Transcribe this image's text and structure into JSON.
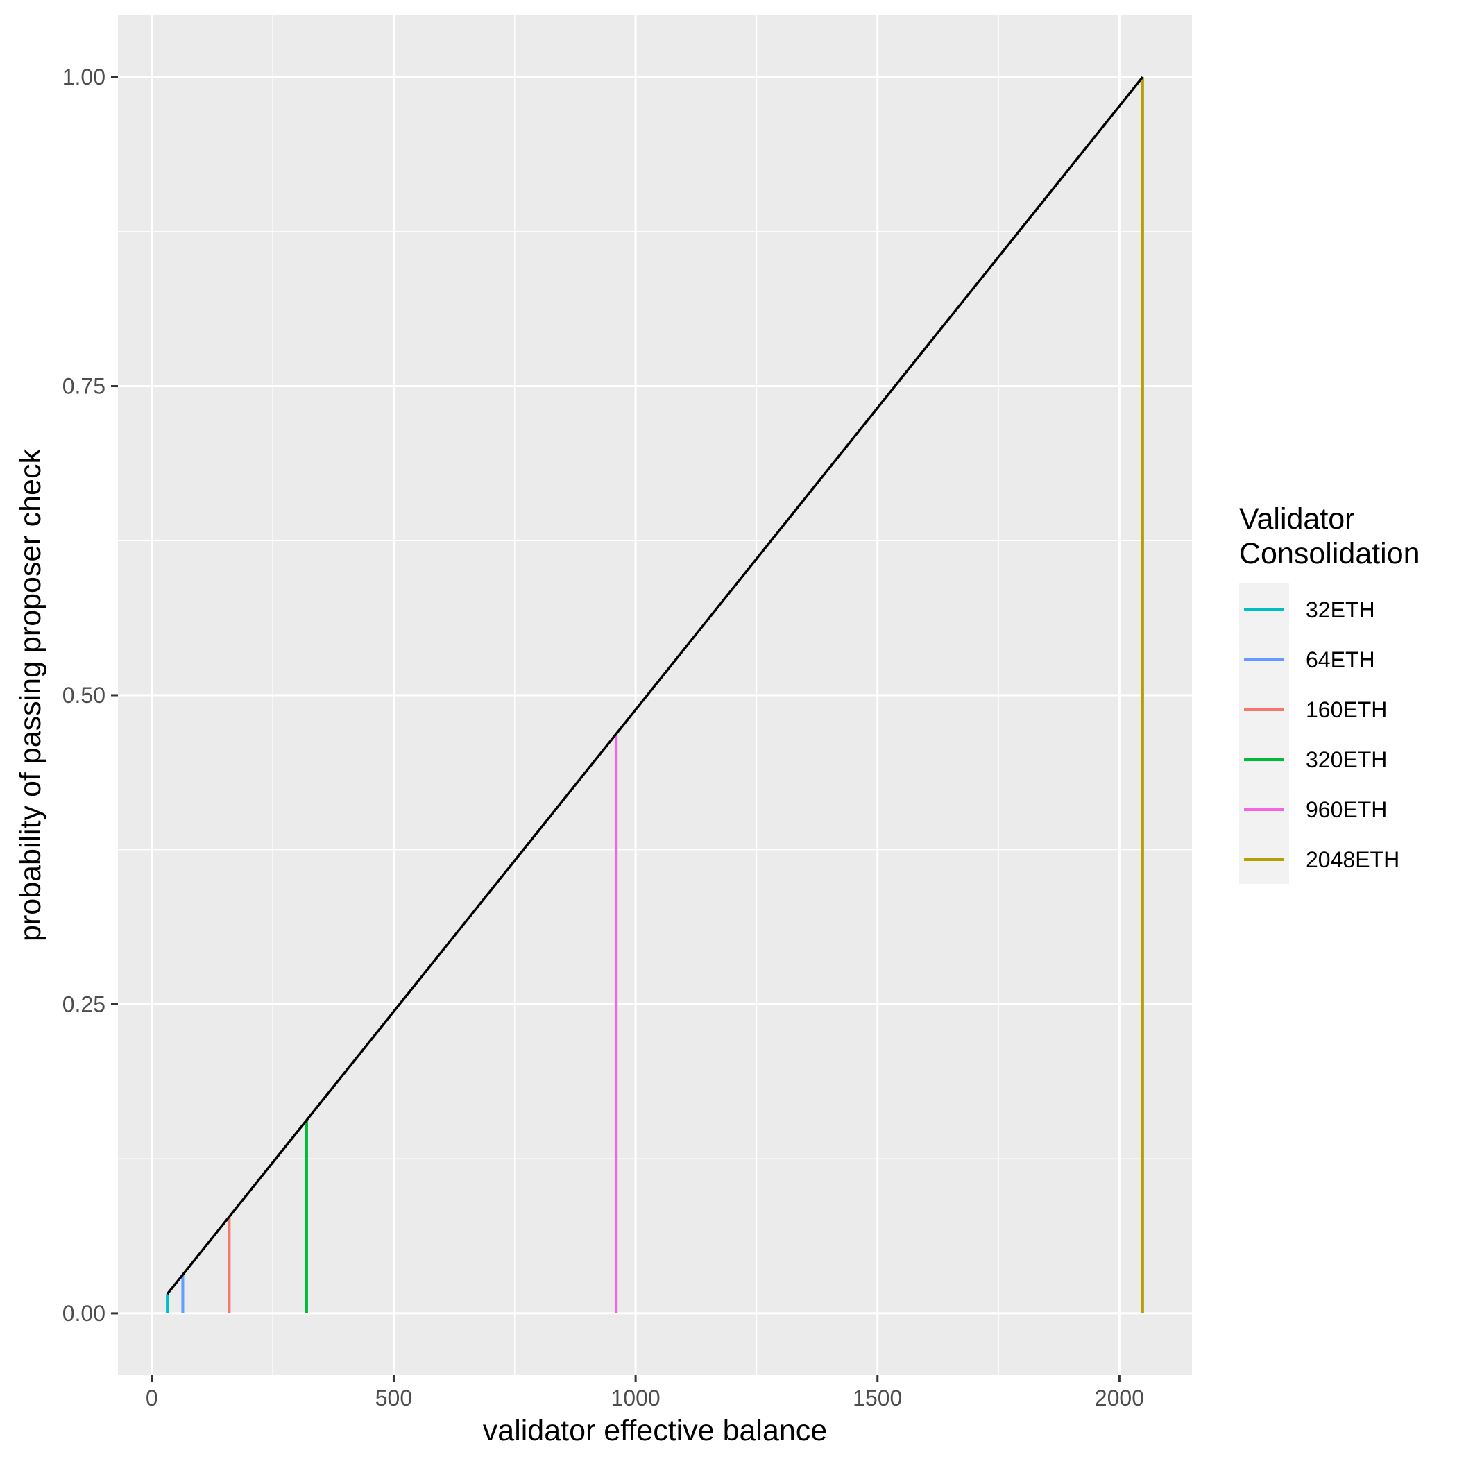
{
  "chart_data": {
    "type": "line",
    "title": "",
    "xlabel": "validator effective balance",
    "ylabel": "probability of passing proposer check",
    "xlim": [
      -70,
      2150
    ],
    "ylim": [
      -0.05,
      1.05
    ],
    "x_ticks": [
      0,
      500,
      1000,
      1500,
      2000
    ],
    "x_tick_labels": [
      "0",
      "500",
      "1000",
      "1500",
      "2000"
    ],
    "y_ticks": [
      0,
      0.25,
      0.5,
      0.75,
      1.0
    ],
    "y_tick_labels": [
      "0.00",
      "0.25",
      "0.50",
      "0.75",
      "1.00"
    ],
    "x_minor_ticks": [
      250,
      750,
      1250,
      1750
    ],
    "y_minor_ticks": [
      0.125,
      0.375,
      0.625,
      0.875
    ],
    "grid": true,
    "background_color": "#ebebeb",
    "grid_color": "#ffffff",
    "line": {
      "color": "#000000",
      "x": [
        32,
        2048
      ],
      "y": [
        0.015625,
        1.0
      ]
    },
    "legend": {
      "title_lines": [
        "Validator",
        "Consolidation"
      ],
      "position": "right"
    },
    "series": [
      {
        "name": "32ETH",
        "x": 32,
        "y": 0.015625,
        "color": "#00BFC4"
      },
      {
        "name": "64ETH",
        "x": 64,
        "y": 0.03125,
        "color": "#619CFF"
      },
      {
        "name": "160ETH",
        "x": 160,
        "y": 0.078125,
        "color": "#F8766D"
      },
      {
        "name": "320ETH",
        "x": 320,
        "y": 0.15625,
        "color": "#00BA38"
      },
      {
        "name": "960ETH",
        "x": 960,
        "y": 0.46875,
        "color": "#F564E3"
      },
      {
        "name": "2048ETH",
        "x": 2048,
        "y": 1.0,
        "color": "#B79F00"
      }
    ]
  }
}
